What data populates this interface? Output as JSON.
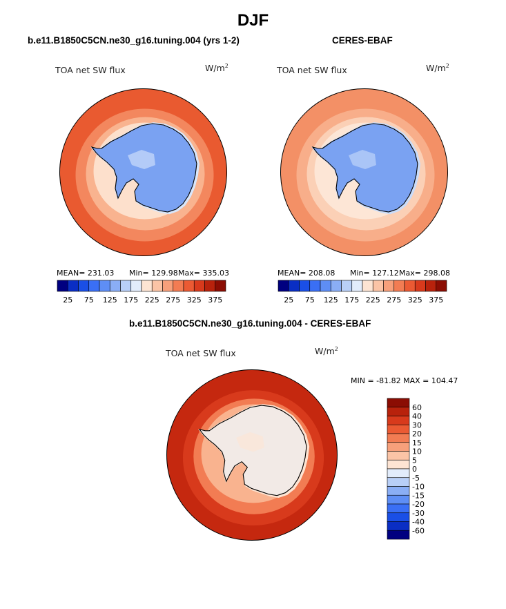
{
  "page": {
    "title": "DJF"
  },
  "panels": [
    {
      "title": "b.e11.B1850C5CN.ne30_g16.tuning.004 (yrs 1-2)",
      "variable": "TOA net SW flux",
      "units_base": "W/m",
      "units_exp": "2",
      "stats": {
        "mean": "MEAN= 231.03",
        "min": "Min= 129.98",
        "max": "Max= 335.03"
      }
    },
    {
      "title": "CERES-EBAF",
      "variable": "TOA net SW flux",
      "units_base": "W/m",
      "units_exp": "2",
      "stats": {
        "mean": "MEAN= 208.08",
        "min": "Min= 127.12",
        "max": "Max= 298.08"
      }
    },
    {
      "title": "b.e11.B1850C5CN.ne30_g16.tuning.004 - CERES-EBAF",
      "variable": "TOA net SW flux",
      "units_base": "W/m",
      "units_exp": "2",
      "stats": {
        "minmax": "MIN = -81.82  MAX = 104.47"
      }
    }
  ],
  "chart_data": [
    {
      "type": "heatmap",
      "projection": "polar-stereographic-south",
      "title": "b.e11.B1850C5CN.ne30_g16.tuning.004 (yrs 1-2)",
      "variable": "TOA net SW flux",
      "units": "W/m^2",
      "mean": 231.03,
      "min": 129.98,
      "max": 335.03,
      "colorbar": {
        "orientation": "horizontal",
        "tick_labels": [
          "25",
          "75",
          "125",
          "175",
          "225",
          "275",
          "325",
          "375"
        ],
        "colors": [
          "#000080",
          "#0a2ec4",
          "#1a4fe6",
          "#3a6ff5",
          "#5e8ef5",
          "#8aaef5",
          "#b8cff7",
          "#e2ecfb",
          "#fde4d3",
          "#fbc4a6",
          "#f7a07b",
          "#f27c53",
          "#eb5a33",
          "#d83a1c",
          "#b8220c",
          "#8b0d03"
        ]
      },
      "field_levels": {
        "outer_ring": "#e95a30",
        "mid_ring": "#f3875e",
        "inner_ring": "#f9b38f",
        "sea_ice": "#fde0cc",
        "coast": "#d8e6fb",
        "ice_sheet": "#7aa2f2"
      }
    },
    {
      "type": "heatmap",
      "projection": "polar-stereographic-south",
      "title": "CERES-EBAF",
      "variable": "TOA net SW flux",
      "units": "W/m^2",
      "mean": 208.08,
      "min": 127.12,
      "max": 298.08,
      "colorbar": {
        "orientation": "horizontal",
        "tick_labels": [
          "25",
          "75",
          "125",
          "175",
          "225",
          "275",
          "325",
          "375"
        ],
        "colors": [
          "#000080",
          "#0a2ec4",
          "#1a4fe6",
          "#3a6ff5",
          "#5e8ef5",
          "#8aaef5",
          "#b8cff7",
          "#e2ecfb",
          "#fde4d3",
          "#fbc4a6",
          "#f7a07b",
          "#f27c53",
          "#eb5a33",
          "#d83a1c",
          "#b8220c",
          "#8b0d03"
        ]
      },
      "field_levels": {
        "outer_ring": "#f39066",
        "mid_ring": "#f8ae8a",
        "inner_ring": "#fbd0b6",
        "sea_ice": "#fde6d6",
        "coast": "#c9dcfa",
        "ice_sheet": "#7aa2f2"
      }
    },
    {
      "type": "heatmap",
      "projection": "polar-stereographic-south",
      "title": "b.e11.B1850C5CN.ne30_g16.tuning.004 - CERES-EBAF",
      "variable": "TOA net SW flux",
      "units": "W/m^2",
      "min": -81.82,
      "max": 104.47,
      "colorbar": {
        "orientation": "vertical",
        "tick_labels": [
          "60",
          "40",
          "30",
          "20",
          "15",
          "10",
          "5",
          "0",
          "-5",
          "-10",
          "-15",
          "-20",
          "-30",
          "-40",
          "-60"
        ],
        "colors": [
          "#8b0d03",
          "#b8220c",
          "#d83a1c",
          "#eb5a33",
          "#f27c53",
          "#f7a07b",
          "#fbc4a6",
          "#fde4d3",
          "#e2ecfb",
          "#b8cff7",
          "#8aaef5",
          "#5e8ef5",
          "#3a6ff5",
          "#1a4fe6",
          "#0a2ec4",
          "#000080"
        ]
      },
      "field_levels": {
        "outer_ring": "#c5280f",
        "mid_ring": "#d83a1c",
        "inner_ring": "#f27c53",
        "sea_ice": "#f9b38f",
        "coast": "#fde4d3",
        "ice_sheet": "#f2eae6"
      }
    }
  ]
}
